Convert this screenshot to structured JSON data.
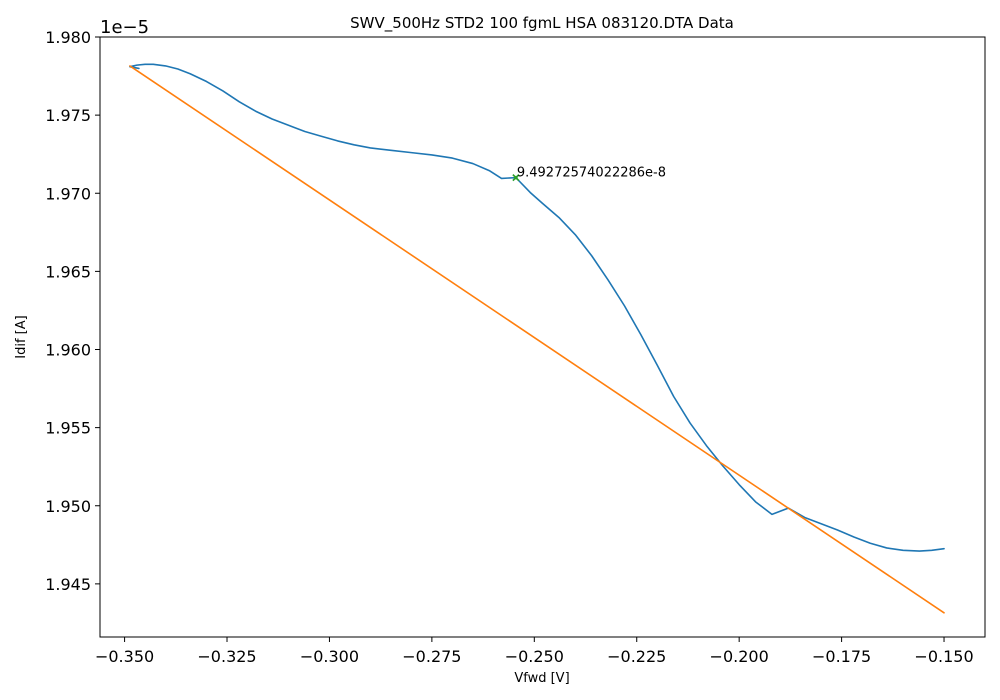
{
  "chart_data": {
    "type": "line",
    "title": "SWV_500Hz STD2 100 fgmL HSA 083120.DTA Data",
    "xlabel": "Vfwd [V]",
    "ylabel": "Idif [A]",
    "offset_text": "1e−5",
    "xlim": [
      -0.356,
      -0.14
    ],
    "ylim": [
      1.9416,
      1.98
    ],
    "x_ticks": [
      -0.35,
      -0.325,
      -0.3,
      -0.275,
      -0.25,
      -0.225,
      -0.2,
      -0.175,
      -0.15
    ],
    "x_tick_labels": [
      "−0.350",
      "−0.325",
      "−0.300",
      "−0.275",
      "−0.250",
      "−0.225",
      "−0.200",
      "−0.175",
      "−0.150"
    ],
    "y_ticks": [
      1.945,
      1.95,
      1.955,
      1.96,
      1.965,
      1.97,
      1.975,
      1.98
    ],
    "y_tick_labels": [
      "1.945",
      "1.950",
      "1.955",
      "1.960",
      "1.965",
      "1.970",
      "1.975",
      "1.980"
    ],
    "grid": false,
    "series": [
      {
        "color": "#1f77b4",
        "x": [
          -0.3465,
          -0.3487,
          -0.347,
          -0.345,
          -0.343,
          -0.34,
          -0.337,
          -0.334,
          -0.33,
          -0.326,
          -0.322,
          -0.318,
          -0.314,
          -0.31,
          -0.306,
          -0.302,
          -0.298,
          -0.294,
          -0.29,
          -0.285,
          -0.28,
          -0.275,
          -0.27,
          -0.265,
          -0.261,
          -0.258,
          -0.2545,
          -0.251,
          -0.248,
          -0.244,
          -0.24,
          -0.236,
          -0.232,
          -0.228,
          -0.224,
          -0.22,
          -0.216,
          -0.212,
          -0.208,
          -0.204,
          -0.2,
          -0.196,
          -0.192,
          -0.188,
          -0.184,
          -0.18,
          -0.176,
          -0.172,
          -0.168,
          -0.164,
          -0.16,
          -0.156,
          -0.153,
          -0.15
        ],
        "y": [
          1.97799,
          1.9781,
          1.9782,
          1.97825,
          1.97825,
          1.97815,
          1.97795,
          1.97765,
          1.97715,
          1.97655,
          1.97585,
          1.97525,
          1.97475,
          1.97435,
          1.97395,
          1.97365,
          1.97335,
          1.9731,
          1.9729,
          1.97275,
          1.9726,
          1.97245,
          1.97225,
          1.9719,
          1.97145,
          1.97095,
          1.971,
          1.97005,
          1.96935,
          1.96845,
          1.96735,
          1.966,
          1.96445,
          1.9628,
          1.96095,
          1.959,
          1.957,
          1.9553,
          1.95385,
          1.95255,
          1.95135,
          1.95025,
          1.94945,
          1.94985,
          1.94925,
          1.94885,
          1.94845,
          1.948,
          1.9476,
          1.9473,
          1.94715,
          1.9471,
          1.94715,
          1.94725
        ]
      },
      {
        "color": "#ff7f0e",
        "x": [
          -0.3487,
          -0.15
        ],
        "y": [
          1.97815,
          1.94315
        ]
      }
    ],
    "marker": {
      "x": -0.2545,
      "y": 1.971,
      "color": "#2ca02c"
    },
    "annotations": [
      {
        "text": "9.49272574022286e-8",
        "x": -0.2545,
        "y": 1.971
      }
    ]
  }
}
